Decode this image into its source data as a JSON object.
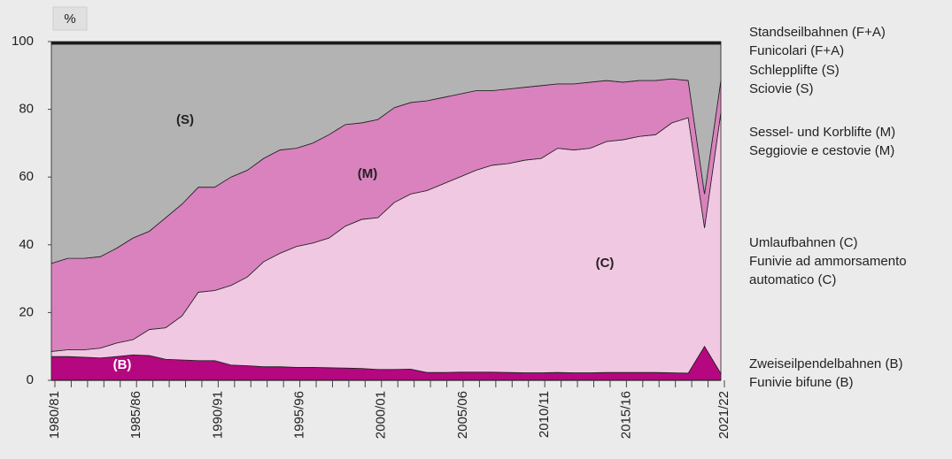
{
  "chart_data": {
    "type": "stacked_area",
    "y_unit": "%",
    "categories": [
      "1980/81",
      null,
      null,
      null,
      null,
      "1985/86",
      null,
      null,
      null,
      null,
      "1990/91",
      null,
      null,
      null,
      null,
      "1995/96",
      null,
      null,
      null,
      null,
      "2000/01",
      null,
      null,
      null,
      null,
      "2005/06",
      null,
      null,
      null,
      null,
      "2010/11",
      null,
      null,
      null,
      null,
      "2015/16",
      null,
      null,
      null,
      null,
      null,
      "2021/22"
    ],
    "ylim": [
      0,
      100
    ],
    "yticks": [
      0,
      20,
      40,
      60,
      80,
      100
    ],
    "series": [
      {
        "name": [
          "Zweiseilpendelbahnen (B)",
          "Funivie bifune (B)"
        ],
        "label": "(B)",
        "color": "#b5077f",
        "values": [
          7,
          7,
          6.8,
          6.6,
          7,
          7.5,
          7.3,
          6.2,
          6,
          5.8,
          5.8,
          4.5,
          4.3,
          4,
          4,
          3.8,
          3.8,
          3.7,
          3.6,
          3.5,
          3.2,
          3.2,
          3.3,
          2.3,
          2.3,
          2.4,
          2.4,
          2.4,
          2.3,
          2.2,
          2.2,
          2.3,
          2.2,
          2.2,
          2.3,
          2.3,
          2.3,
          2.3,
          2.2,
          2.1,
          10,
          2
        ]
      },
      {
        "name": [
          "Umlaufbahnen (C)",
          "Funivie ad ammorsamento",
          "automatico (C)"
        ],
        "label": "(C)",
        "color": "#f0c8e2",
        "values": [
          1.5,
          2,
          2.2,
          2.9,
          4,
          4.5,
          7.7,
          9.3,
          13,
          20.2,
          20.7,
          23.5,
          26.2,
          31,
          33.5,
          35.7,
          36.7,
          38.3,
          41.9,
          44,
          44.8,
          49.3,
          51.7,
          53.7,
          55.7,
          57.6,
          59.6,
          61.1,
          61.7,
          62.8,
          63.3,
          66.2,
          65.8,
          66.3,
          68.2,
          68.7,
          69.7,
          70.2,
          73.8,
          75.4,
          35,
          77
        ]
      },
      {
        "name": [
          "Sessel- und Korblifte (M)",
          "Seggiovie e cestovie (M)"
        ],
        "label": "(M)",
        "color": "#d982be",
        "values": [
          26,
          27,
          27,
          27,
          28,
          30,
          29,
          32.5,
          33,
          31,
          30.5,
          32,
          31.5,
          30.5,
          30.5,
          29,
          29.5,
          30.5,
          30,
          28.5,
          29,
          28,
          27,
          26.5,
          25.5,
          24.5,
          23.5,
          22,
          22,
          21.5,
          21.5,
          19,
          19.5,
          19.5,
          18,
          17,
          16.5,
          16,
          13,
          11,
          10,
          9.5
        ]
      },
      {
        "name": [
          "Schlepplifte (S)",
          "Sciovie (S)"
        ],
        "label": "(S)",
        "color": "#b3b3b3",
        "values": [
          64.7,
          63.2,
          63.2,
          62.7,
          60.2,
          57.2,
          55.2,
          51.2,
          47.2,
          42.2,
          42.2,
          39.2,
          37.2,
          33.7,
          31.2,
          30.7,
          29.2,
          26.7,
          23.7,
          23.2,
          22.2,
          18.7,
          17.2,
          16.7,
          15.7,
          14.7,
          13.7,
          13.7,
          13.2,
          12.7,
          12.2,
          11.7,
          11.7,
          11.2,
          10.7,
          11.2,
          10.7,
          10.7,
          10.2,
          10.7,
          44.2,
          10.7
        ]
      },
      {
        "name": [
          "Standseilbahnen (F+A)",
          "Funicolari (F+A)"
        ],
        "color": "#1a1a1a",
        "values": [
          0.8,
          0.8,
          0.8,
          0.8,
          0.8,
          0.8,
          0.8,
          0.8,
          0.8,
          0.8,
          0.8,
          0.8,
          0.8,
          0.8,
          0.8,
          0.8,
          0.8,
          0.8,
          0.8,
          0.8,
          0.8,
          0.8,
          0.8,
          0.8,
          0.8,
          0.8,
          0.8,
          0.8,
          0.8,
          0.8,
          0.8,
          0.8,
          0.8,
          0.8,
          0.8,
          0.8,
          0.8,
          0.8,
          0.8,
          0.8,
          0.8,
          0.8
        ]
      }
    ]
  }
}
